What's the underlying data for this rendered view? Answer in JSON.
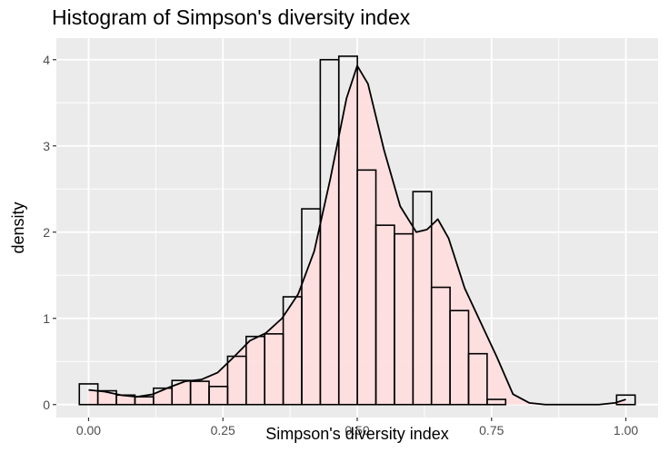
{
  "chart_data": {
    "type": "bar",
    "title": "Histogram of Simpson's diversity index",
    "xlabel": "Simpson's diversity index",
    "ylabel": "density",
    "xlim": [
      -0.06,
      1.06
    ],
    "ylim": [
      -0.15,
      4.25
    ],
    "x_ticks": [
      0.0,
      0.25,
      0.5,
      0.75,
      1.0
    ],
    "x_tick_labels": [
      "0.00",
      "0.25",
      "0.50",
      "0.75",
      "1.00"
    ],
    "y_ticks": [
      0,
      1,
      2,
      3,
      4
    ],
    "y_tick_labels": [
      "0",
      "1",
      "2",
      "3",
      "4"
    ],
    "grid": true,
    "bin_width": 0.0345,
    "bin_centers": [
      0.0,
      0.0345,
      0.069,
      0.1035,
      0.138,
      0.1725,
      0.207,
      0.2415,
      0.276,
      0.3105,
      0.345,
      0.3795,
      0.414,
      0.4485,
      0.483,
      0.5175,
      0.552,
      0.5865,
      0.621,
      0.6555,
      0.69,
      0.7245,
      0.759,
      0.7935,
      1.0
    ],
    "values": [
      0.24,
      0.16,
      0.11,
      0.09,
      0.19,
      0.28,
      0.27,
      0.21,
      0.56,
      0.79,
      0.82,
      1.25,
      2.27,
      4.0,
      4.04,
      2.72,
      2.08,
      1.98,
      2.47,
      1.36,
      1.09,
      0.59,
      0.06,
      0.0,
      0.11
    ],
    "density_curve": {
      "x": [
        0.0,
        0.03,
        0.06,
        0.09,
        0.12,
        0.15,
        0.18,
        0.21,
        0.24,
        0.27,
        0.3,
        0.33,
        0.36,
        0.39,
        0.42,
        0.45,
        0.48,
        0.5,
        0.52,
        0.55,
        0.58,
        0.61,
        0.63,
        0.65,
        0.67,
        0.7,
        0.73,
        0.76,
        0.79,
        0.82,
        0.85,
        0.9,
        0.95,
        0.98,
        1.0
      ],
      "y": [
        0.17,
        0.15,
        0.11,
        0.09,
        0.12,
        0.2,
        0.27,
        0.29,
        0.37,
        0.55,
        0.74,
        0.83,
        1.0,
        1.28,
        1.78,
        2.62,
        3.55,
        3.93,
        3.72,
        2.95,
        2.3,
        2.0,
        2.03,
        2.15,
        1.93,
        1.35,
        0.95,
        0.55,
        0.12,
        0.02,
        0.0,
        0.0,
        0.0,
        0.02,
        0.06
      ]
    },
    "colors": {
      "panel_background": "#ebebeb",
      "grid": "#ffffff",
      "density_fill": "#ffdede",
      "bar_outline": "#000000",
      "curve": "#000000"
    }
  }
}
